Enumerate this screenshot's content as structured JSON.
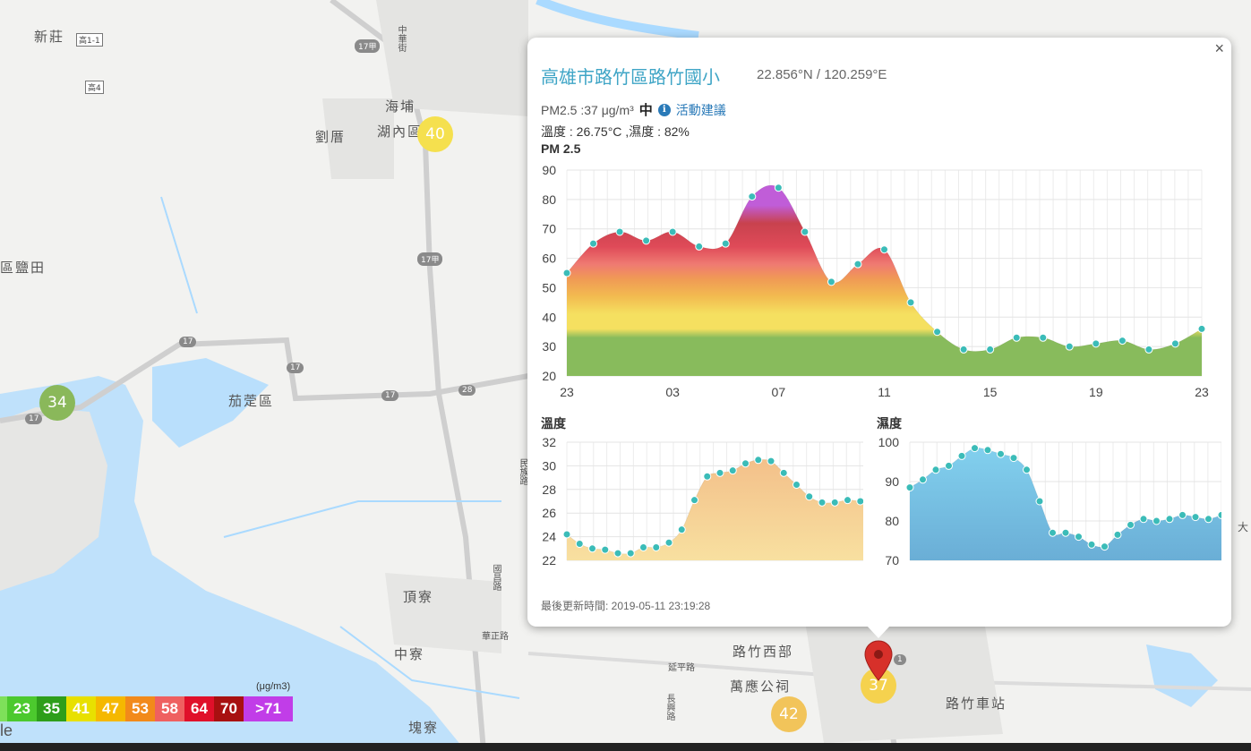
{
  "map": {
    "labels": [
      {
        "text": "新莊",
        "key": "xinzhuang"
      },
      {
        "text": "海埔",
        "key": "haipu"
      },
      {
        "text": "湖內區",
        "key": "hunei"
      },
      {
        "text": "劉厝",
        "key": "liucuo"
      },
      {
        "text": "區鹽田",
        "key": "yantian"
      },
      {
        "text": "茄萣區",
        "key": "qieding"
      },
      {
        "text": "頂寮",
        "key": "dingliao"
      },
      {
        "text": "中寮",
        "key": "zhongliao"
      },
      {
        "text": "路竹西部",
        "key": "luzhuxibu"
      },
      {
        "text": "萬應公祠",
        "key": "wanying"
      },
      {
        "text": "路竹車站",
        "key": "station"
      },
      {
        "text": "塊寮",
        "key": "kuailiao"
      }
    ],
    "road_labels": [
      "高1-1",
      "高4",
      "17甲",
      "17甲",
      "17",
      "17",
      "17",
      "28",
      "17",
      "1",
      "延平路",
      "華正路",
      "中華街",
      "民族路",
      "長興路",
      "國昌路",
      "大"
    ],
    "markers": [
      {
        "value": "40",
        "color": "#f5e04e"
      },
      {
        "value": "34",
        "color": "#8ab85a"
      },
      {
        "value": "37",
        "color": "#f5d24e"
      },
      {
        "value": "42",
        "color": "#f2c45a"
      }
    ],
    "google_text": "le"
  },
  "legend": {
    "unit": "(μg/m3)",
    "cells": [
      {
        "label": "",
        "color": "#7ee05a"
      },
      {
        "label": "23",
        "color": "#4cc92e"
      },
      {
        "label": "35",
        "color": "#2e9e1a"
      },
      {
        "label": "41",
        "color": "#e8e000"
      },
      {
        "label": "47",
        "color": "#f5b800"
      },
      {
        "label": "53",
        "color": "#f28a1a"
      },
      {
        "label": "58",
        "color": "#ef6060"
      },
      {
        "label": "64",
        "color": "#e0102a"
      },
      {
        "label": "70",
        "color": "#a81010"
      },
      {
        "label": ">71",
        "color": "#c13de8"
      }
    ]
  },
  "popup": {
    "close": "×",
    "title": "高雄市路竹區路竹國小",
    "coords": "22.856°N / 120.259°E",
    "pm_text": "PM2.5 :37 μg/m³",
    "pm_level": "中",
    "info_icon": "i",
    "advice_link": "活動建議",
    "temp_humidity": "溫度 : 26.75°C ,濕度 : 82%",
    "update_time": "最後更新時間: 2019-05-11 23:19:28"
  },
  "chart_data": [
    {
      "type": "area",
      "title": "PM 2.5",
      "x_labels": [
        "23",
        "03",
        "07",
        "11",
        "15",
        "19",
        "23"
      ],
      "ylim": [
        20,
        90
      ],
      "yticks": [
        20,
        30,
        40,
        50,
        60,
        70,
        80,
        90
      ],
      "values": [
        55,
        65,
        69,
        66,
        69,
        64,
        65,
        81,
        84,
        69,
        52,
        58,
        63,
        45,
        35,
        29,
        29,
        33,
        33,
        30,
        31,
        32,
        29,
        31,
        36
      ],
      "grid": true
    },
    {
      "type": "area",
      "title": "溫度",
      "ylim": [
        22,
        32
      ],
      "yticks": [
        22,
        24,
        26,
        28,
        30,
        32
      ],
      "values": [
        24.2,
        23.4,
        23.0,
        22.9,
        22.6,
        22.6,
        23.1,
        23.1,
        23.5,
        24.6,
        27.1,
        29.1,
        29.4,
        29.6,
        30.2,
        30.5,
        30.4,
        29.4,
        28.4,
        27.4,
        26.9,
        26.9,
        27.1,
        27.0,
        26.8
      ],
      "grid": true
    },
    {
      "type": "area",
      "title": "濕度",
      "ylim": [
        70,
        100
      ],
      "yticks": [
        70,
        80,
        90,
        100
      ],
      "values": [
        88.5,
        90.5,
        93,
        94,
        96.5,
        98.5,
        98,
        97,
        96,
        93,
        85,
        77,
        77,
        76,
        74,
        73.5,
        76.5,
        79,
        80.5,
        80,
        80.5,
        81.5,
        81,
        80.5,
        81.5
      ],
      "grid": true
    }
  ]
}
